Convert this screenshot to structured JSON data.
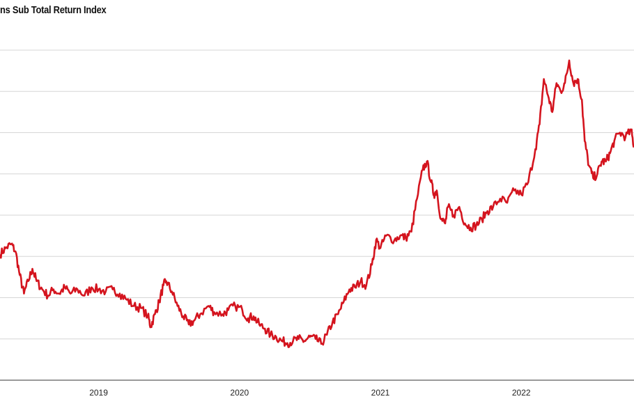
{
  "chart_data": {
    "type": "line",
    "title": "ns Sub Total Return Index",
    "xlabel": "",
    "ylabel": "",
    "x_tick_labels": [
      "2019",
      "2020",
      "2021",
      "2022"
    ],
    "x_tick_values": [
      2019.0,
      2020.0,
      2021.0,
      2022.0
    ],
    "xlim": [
      2018.3,
      2022.8
    ],
    "ylim": [
      0,
      8
    ],
    "grid": true,
    "series": [
      {
        "color": "#d4141e",
        "points": [
          [
            2018.3,
            3.05
          ],
          [
            2018.34,
            3.2
          ],
          [
            2018.38,
            3.3
          ],
          [
            2018.41,
            3.12
          ],
          [
            2018.44,
            2.55
          ],
          [
            2018.47,
            2.1
          ],
          [
            2018.5,
            2.4
          ],
          [
            2018.53,
            2.7
          ],
          [
            2018.56,
            2.4
          ],
          [
            2018.6,
            2.2
          ],
          [
            2018.64,
            2.05
          ],
          [
            2018.68,
            2.2
          ],
          [
            2018.72,
            2.1
          ],
          [
            2018.76,
            2.25
          ],
          [
            2018.8,
            2.1
          ],
          [
            2018.85,
            2.2
          ],
          [
            2018.9,
            2.05
          ],
          [
            2018.95,
            2.25
          ],
          [
            2019.0,
            2.2
          ],
          [
            2019.05,
            2.15
          ],
          [
            2019.1,
            2.2
          ],
          [
            2019.15,
            2.1
          ],
          [
            2019.2,
            1.95
          ],
          [
            2019.25,
            1.8
          ],
          [
            2019.3,
            1.75
          ],
          [
            2019.35,
            1.55
          ],
          [
            2019.37,
            1.3
          ],
          [
            2019.4,
            1.6
          ],
          [
            2019.43,
            1.9
          ],
          [
            2019.46,
            2.3
          ],
          [
            2019.48,
            2.4
          ],
          [
            2019.52,
            2.15
          ],
          [
            2019.56,
            1.8
          ],
          [
            2019.6,
            1.55
          ],
          [
            2019.64,
            1.35
          ],
          [
            2019.68,
            1.45
          ],
          [
            2019.72,
            1.6
          ],
          [
            2019.78,
            1.8
          ],
          [
            2019.82,
            1.65
          ],
          [
            2019.88,
            1.6
          ],
          [
            2019.92,
            1.7
          ],
          [
            2019.97,
            1.8
          ],
          [
            2020.02,
            1.7
          ],
          [
            2020.06,
            1.5
          ],
          [
            2020.1,
            1.55
          ],
          [
            2020.14,
            1.35
          ],
          [
            2020.18,
            1.25
          ],
          [
            2020.22,
            1.1
          ],
          [
            2020.26,
            1.05
          ],
          [
            2020.3,
            0.95
          ],
          [
            2020.34,
            0.9
          ],
          [
            2020.38,
            0.95
          ],
          [
            2020.42,
            1.0
          ],
          [
            2020.46,
            0.95
          ],
          [
            2020.5,
            1.05
          ],
          [
            2020.54,
            1.0
          ],
          [
            2020.58,
            0.88
          ],
          [
            2020.62,
            1.1
          ],
          [
            2020.66,
            1.4
          ],
          [
            2020.7,
            1.6
          ],
          [
            2020.74,
            1.9
          ],
          [
            2020.78,
            2.2
          ],
          [
            2020.82,
            2.25
          ],
          [
            2020.86,
            2.4
          ],
          [
            2020.9,
            2.3
          ],
          [
            2020.94,
            2.8
          ],
          [
            2020.97,
            3.4
          ],
          [
            2021.0,
            3.2
          ],
          [
            2021.04,
            3.5
          ],
          [
            2021.1,
            3.4
          ],
          [
            2021.14,
            3.5
          ],
          [
            2021.18,
            3.45
          ],
          [
            2021.22,
            3.6
          ],
          [
            2021.26,
            4.4
          ],
          [
            2021.3,
            5.1
          ],
          [
            2021.33,
            5.3
          ],
          [
            2021.36,
            4.8
          ],
          [
            2021.38,
            4.5
          ],
          [
            2021.4,
            4.6
          ],
          [
            2021.43,
            3.9
          ],
          [
            2021.46,
            3.8
          ],
          [
            2021.48,
            4.2
          ],
          [
            2021.52,
            4.0
          ],
          [
            2021.56,
            4.2
          ],
          [
            2021.6,
            3.8
          ],
          [
            2021.64,
            3.7
          ],
          [
            2021.68,
            3.75
          ],
          [
            2021.72,
            3.9
          ],
          [
            2021.76,
            4.1
          ],
          [
            2021.8,
            4.2
          ],
          [
            2021.85,
            4.4
          ],
          [
            2021.9,
            4.3
          ],
          [
            2021.95,
            4.6
          ],
          [
            2022.0,
            4.5
          ],
          [
            2022.05,
            4.8
          ],
          [
            2022.1,
            5.6
          ],
          [
            2022.13,
            6.2
          ],
          [
            2022.16,
            7.3
          ],
          [
            2022.19,
            6.9
          ],
          [
            2022.22,
            6.5
          ],
          [
            2022.25,
            7.2
          ],
          [
            2022.28,
            7.0
          ],
          [
            2022.31,
            7.2
          ],
          [
            2022.34,
            7.75
          ],
          [
            2022.37,
            7.2
          ],
          [
            2022.4,
            7.3
          ],
          [
            2022.43,
            6.8
          ],
          [
            2022.45,
            5.8
          ],
          [
            2022.48,
            5.2
          ],
          [
            2022.51,
            4.9
          ],
          [
            2022.54,
            5.0
          ],
          [
            2022.57,
            5.3
          ],
          [
            2022.6,
            5.3
          ],
          [
            2022.63,
            5.5
          ],
          [
            2022.66,
            5.8
          ],
          [
            2022.7,
            6.0
          ],
          [
            2022.74,
            5.9
          ],
          [
            2022.78,
            6.05
          ],
          [
            2022.8,
            5.65
          ]
        ]
      }
    ]
  }
}
